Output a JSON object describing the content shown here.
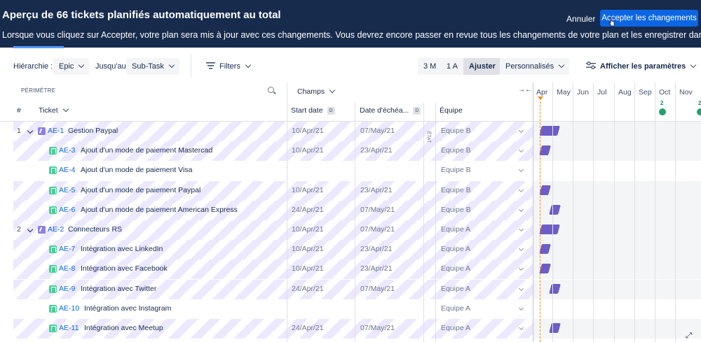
{
  "banner": {
    "title": "Aperçu de 66 tickets planifiés automatiquement au total",
    "description": "Lorsque vous cliquez sur Accepter, votre plan sera mis à jour avec ces changements. Vous devrez encore passer en revue tous les changements de votre plan et les enregistrer dans Jira.",
    "cancel_label": "Annuler",
    "accept_label": "Accepter les changements"
  },
  "toolbar": {
    "hierarchy_label": "Hiérarchie :",
    "hierarchy_from": "Epic",
    "until_label": "Jusqu'au",
    "hierarchy_to": "Sub-Task",
    "filters_label": "Filters",
    "zoom": [
      "3 M",
      "1 A",
      "Ajuster",
      "Personnalisés"
    ],
    "zoom_active": "Ajuster",
    "settings_label": "Afficher les paramètres"
  },
  "headers": {
    "scope": "PÉRIMÈTRE",
    "fields": "Champs",
    "row_num": "#",
    "ticket": "Ticket",
    "start_date": "Start date",
    "due_date": "Date d'échéa...",
    "team": "Équipe",
    "date_badge": "D",
    "status_vertical": "ÉTAT"
  },
  "timeline": {
    "months": [
      "Apr",
      "May",
      "Jun",
      "Jul",
      "Aug",
      "Sep",
      "Oct",
      "Nov"
    ],
    "releases": [
      {
        "month": "Oct",
        "count": "2"
      },
      {
        "month": "Nov",
        "count": "2"
      }
    ]
  },
  "rows": [
    {
      "num": "1",
      "type": "epic",
      "key": "AE-1",
      "summary": "Gestion Paypal",
      "start": "10/Apr/21",
      "due": "07/May/21",
      "team": "Equipe B",
      "bar": {
        "start_day": 10,
        "end_day": 37
      }
    },
    {
      "num": "",
      "type": "story",
      "key": "AE-3",
      "summary": "Ajout d'un mode de paiement Mastercad",
      "start": "10/Apr/21",
      "due": "23/Apr/21",
      "team": "Equipe B",
      "bar": {
        "start_day": 10,
        "end_day": 23
      }
    },
    {
      "num": "",
      "type": "story",
      "key": "AE-4",
      "summary": "Ajout d'un mode de paiement Visa",
      "start": "",
      "due": "",
      "team": "Equipe B",
      "bar": null
    },
    {
      "num": "",
      "type": "story",
      "key": "AE-5",
      "summary": "Ajout d'un mode de paiement Paypal",
      "start": "10/Apr/21",
      "due": "23/Apr/21",
      "team": "Equipe B",
      "bar": {
        "start_day": 10,
        "end_day": 23
      }
    },
    {
      "num": "",
      "type": "story",
      "key": "AE-6",
      "summary": "Ajout d'un mode de paiement American Express",
      "start": "24/Apr/21",
      "due": "07/May/21",
      "team": "Equipe B",
      "bar": {
        "start_day": 24,
        "end_day": 37
      }
    },
    {
      "num": "2",
      "type": "epic",
      "key": "AE-2",
      "summary": "Connecteurs RS",
      "start": "10/Apr/21",
      "due": "07/May/21",
      "team": "Equipe A",
      "bar": {
        "start_day": 10,
        "end_day": 37
      }
    },
    {
      "num": "",
      "type": "story",
      "key": "AE-7",
      "summary": "Intégration avec LinkedIn",
      "start": "10/Apr/21",
      "due": "23/Apr/21",
      "team": "Equipe A",
      "bar": {
        "start_day": 10,
        "end_day": 23
      }
    },
    {
      "num": "",
      "type": "story",
      "key": "AE-8",
      "summary": "Intégration avec Facebook",
      "start": "10/Apr/21",
      "due": "23/Apr/21",
      "team": "Equipe A",
      "bar": {
        "start_day": 10,
        "end_day": 23
      }
    },
    {
      "num": "",
      "type": "story",
      "key": "AE-9",
      "summary": "Intégration avec Twitter",
      "start": "24/Apr/21",
      "due": "07/May/21",
      "team": "Equipe A",
      "bar": {
        "start_day": 24,
        "end_day": 37
      }
    },
    {
      "num": "",
      "type": "story",
      "key": "AE-10",
      "summary": "Intégration avec Instagram",
      "start": "",
      "due": "",
      "team": "Equipe A",
      "bar": null
    },
    {
      "num": "",
      "type": "story",
      "key": "AE-11",
      "summary": "Intégration avec Meetup",
      "start": "24/Apr/21",
      "due": "07/May/21",
      "team": "Equipe A",
      "bar": {
        "start_day": 24,
        "end_day": 37
      }
    }
  ],
  "colors": {
    "banner_bg": "#172b4d",
    "accent": "#0c66e4",
    "bar": "#6e5dc6",
    "release": "#22a06b"
  }
}
